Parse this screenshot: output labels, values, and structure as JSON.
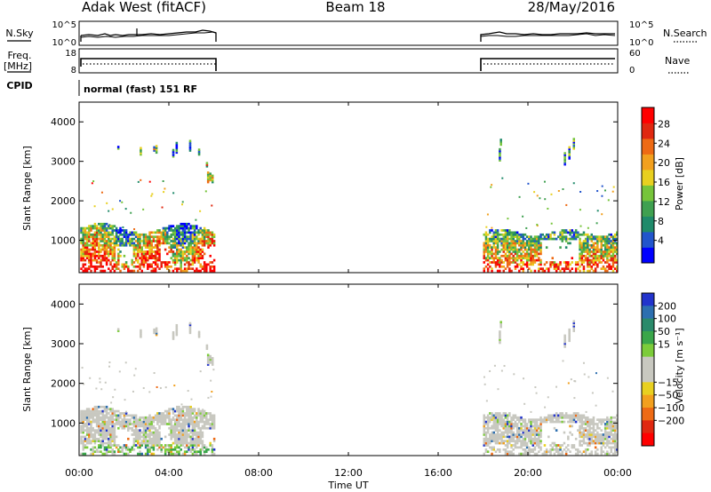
{
  "header": {
    "radar": "Adak West (fitACF)",
    "beam": "Beam 18",
    "date": "28/May/2016"
  },
  "panels": {
    "nsky": {
      "label": "N.Sky",
      "ticks": [
        "10^5",
        "10^0"
      ],
      "right_label": "N.Search",
      "right_ticks": [
        "10^5",
        "10^0"
      ]
    },
    "freq": {
      "label": "Freq.",
      "unit": "[MHz]",
      "ticks": [
        "18",
        "8"
      ],
      "right_label": "Nave",
      "right_ticks": [
        "60",
        "0"
      ]
    },
    "cpid": {
      "label": "CPID",
      "mode": "normal (fast) 151 RF"
    }
  },
  "time_axis": {
    "label": "Time UT",
    "ticks": [
      "00:00",
      "04:00",
      "08:00",
      "12:00",
      "16:00",
      "20:00",
      "00:00"
    ]
  },
  "chart_data": [
    {
      "type": "heatmap",
      "name": "power",
      "ylabel": "Slant Range [km]",
      "x_range_hours": [
        0,
        24
      ],
      "y_range_km": [
        180,
        4500
      ],
      "yticks": [
        "1000",
        "2000",
        "3000",
        "4000"
      ],
      "colorbar": {
        "label": "Power [dB]",
        "ticks": [
          "4",
          "8",
          "12",
          "16",
          "20",
          "24",
          "28"
        ],
        "colors": [
          "#0000ff",
          "#2255cc",
          "#1f8a6a",
          "#3fa050",
          "#76c43a",
          "#e8d020",
          "#f2a01e",
          "#ee6a14",
          "#e02810",
          "#ff0000"
        ]
      },
      "data_intervals_ut": [
        [
          0,
          6
        ],
        [
          18,
          24
        ]
      ]
    },
    {
      "type": "heatmap",
      "name": "velocity",
      "ylabel": "Slant Range [km]",
      "x_range_hours": [
        0,
        24
      ],
      "y_range_km": [
        180,
        4500
      ],
      "yticks": [
        "1000",
        "2000",
        "3000",
        "4000"
      ],
      "colorbar": {
        "label": "Velocity [m s⁻¹]",
        "ticks": [
          "200",
          "100",
          "50",
          "15",
          "−15",
          "−50",
          "−100",
          "−200"
        ],
        "colors": [
          "#2233cc",
          "#2d6fb0",
          "#2a8a6a",
          "#3aa64a",
          "#7ccc3a",
          "#c8c8c0",
          "#c8c8c0",
          "#e8d020",
          "#f2a01e",
          "#ee6a14",
          "#e02810",
          "#ff0000"
        ]
      },
      "data_intervals_ut": [
        [
          0,
          6
        ],
        [
          18,
          24
        ]
      ]
    }
  ]
}
